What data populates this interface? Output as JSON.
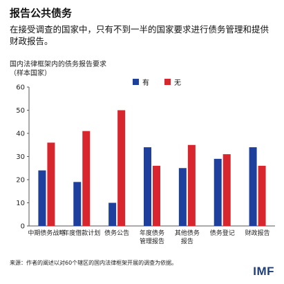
{
  "title": "报告公共债务",
  "subtitle": "在接受调查的国家中，只有不到一半的国家要求进行债务管理和提供财政报告。",
  "chart_title": "国内法律框架内的债务报告要求",
  "chart_unit": "（样本国家）",
  "source": "来源：作者的阐述以对60个辖区的国内法律框架开展的调查为依据。",
  "logo": "IMF",
  "colors": {
    "blue": "#1f3f9c",
    "red": "#d7262e",
    "axis": "#555555",
    "grid": "#dddddd"
  },
  "chart_data": {
    "type": "bar",
    "categories": [
      [
        "中期债务战略"
      ],
      [
        "年度借款计划"
      ],
      [
        "债务公告"
      ],
      [
        "年度债务",
        "管理报告"
      ],
      [
        "其他债务",
        "报告"
      ],
      [
        "债务登记"
      ],
      [
        "财政报告"
      ]
    ],
    "series": [
      {
        "name": "有",
        "color": "#1f3f9c",
        "values": [
          24,
          19,
          10,
          34,
          25,
          29,
          34
        ]
      },
      {
        "name": "无",
        "color": "#d7262e",
        "values": [
          36,
          41,
          50,
          26,
          35,
          31,
          26
        ]
      }
    ],
    "ylim": [
      0,
      60
    ],
    "yticks": [
      0,
      10,
      20,
      30,
      40,
      50,
      60
    ],
    "grid": false,
    "legend": "top-center"
  }
}
